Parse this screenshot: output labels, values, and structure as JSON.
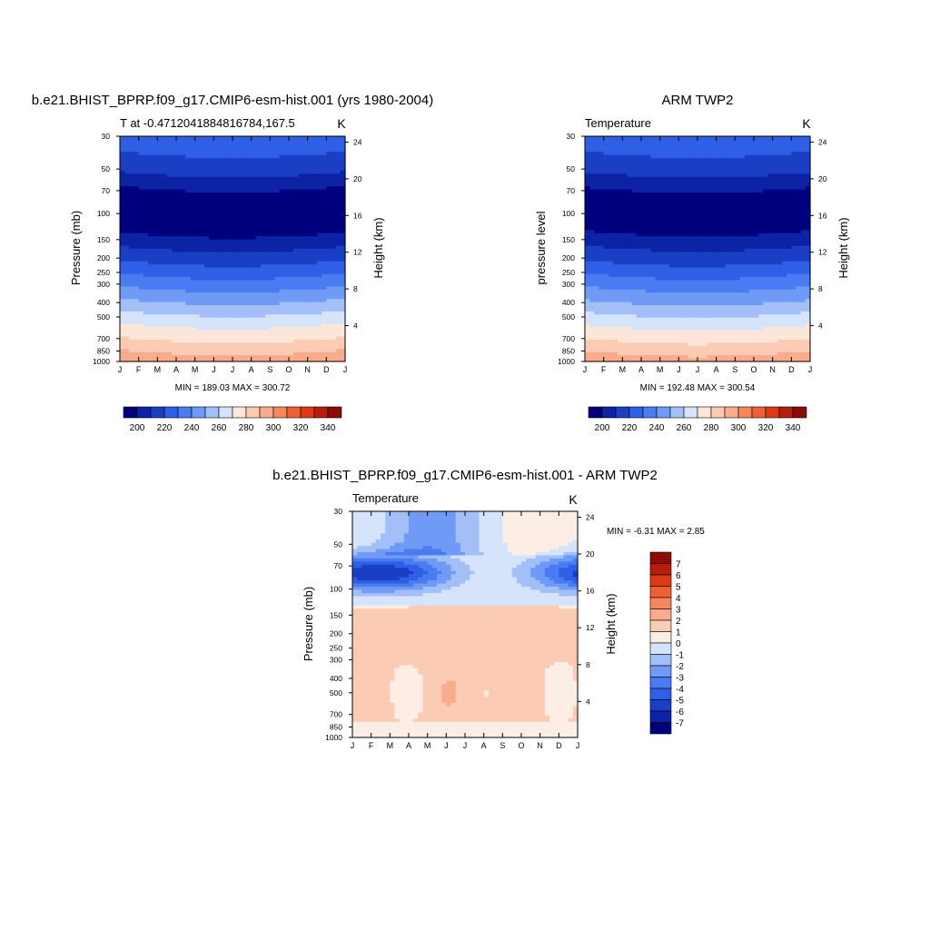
{
  "colors": {
    "temperature": [
      "#00007f",
      "#0d23a6",
      "#1a3fc4",
      "#2e5fe6",
      "#4a7bf2",
      "#6f9af5",
      "#a3bff8",
      "#d5e3fb",
      "#fde6d8",
      "#fccbb4",
      "#f9ac8d",
      "#f5875f",
      "#ef6034",
      "#dc3a14",
      "#b61e0a",
      "#8c0b04"
    ],
    "difference": [
      "#00007f",
      "#0d23a6",
      "#1a3fc4",
      "#2e5fe6",
      "#4a7bf2",
      "#6f9af5",
      "#a3bff8",
      "#d5e3fb",
      "#fdeee5",
      "#fccbb4",
      "#f9ac8d",
      "#f5875f",
      "#ef6034",
      "#dc3a14",
      "#b61e0a",
      "#8c0b04"
    ]
  },
  "panels": {
    "model": {
      "title": "b.e21.BHIST_BPRP.f09_g17.CMIP6-esm-hist.001 (yrs 1980-2004)",
      "subtitle_left": "T at -0.4712041884816784,167.5",
      "subtitle_right": "K",
      "ylabel_left": "Pressure (mb)",
      "ylabel_right": "Height (km)",
      "stats": "MIN = 189.03  MAX = 300.72"
    },
    "obs": {
      "title": "ARM TWP2",
      "subtitle_left": "Temperature",
      "subtitle_right": "K",
      "ylabel_left": "pressure level",
      "ylabel_right": "Height (km)",
      "stats": "MIN = 192.48  MAX = 300.54"
    },
    "diff": {
      "title": "b.e21.BHIST_BPRP.f09_g17.CMIP6-esm-hist.001 - ARM TWP2",
      "subtitle_left": "Temperature",
      "subtitle_right": "K",
      "ylabel_left": "Pressure (mb)",
      "ylabel_right": "Height (km)",
      "stats": "MIN =  -6.31  MAX =   2.85"
    }
  },
  "chart_data": [
    {
      "type": "heatmap",
      "title": "b.e21.BHIST_BPRP.f09_g17.CMIP6-esm-hist.001 (yrs 1980-2004)",
      "subtitle": "T at -0.4712041884816784,167.5",
      "units": "K",
      "x_ticks": [
        "J",
        "F",
        "M",
        "A",
        "M",
        "J",
        "J",
        "A",
        "S",
        "O",
        "N",
        "D",
        "J"
      ],
      "y_ticks": [
        30,
        50,
        70,
        100,
        150,
        200,
        250,
        300,
        400,
        500,
        700,
        850,
        1000
      ],
      "y_right_ticks": [
        4,
        8,
        12,
        16,
        20,
        24
      ],
      "ylabel": "Pressure (mb)",
      "ylabel_right": "Height (km)",
      "ylim": [
        30,
        1000
      ],
      "y_scale": "log",
      "y_inverted": true,
      "min": 189.03,
      "max": 300.72,
      "colorbar_ticks": [
        200,
        220,
        240,
        260,
        280,
        300,
        320,
        340
      ],
      "colorbar_levels": [
        190,
        200,
        210,
        220,
        230,
        240,
        250,
        260,
        270,
        280,
        290,
        300,
        310,
        320,
        330,
        340,
        350
      ],
      "profile": [
        {
          "p": 30,
          "T": 226
        },
        {
          "p": 40,
          "T": 219
        },
        {
          "p": 50,
          "T": 212
        },
        {
          "p": 70,
          "T": 197
        },
        {
          "p": 100,
          "T": 192
        },
        {
          "p": 120,
          "T": 195
        },
        {
          "p": 150,
          "T": 205
        },
        {
          "p": 200,
          "T": 218
        },
        {
          "p": 250,
          "T": 229
        },
        {
          "p": 300,
          "T": 238
        },
        {
          "p": 400,
          "T": 253
        },
        {
          "p": 500,
          "T": 265
        },
        {
          "p": 700,
          "T": 281
        },
        {
          "p": 850,
          "T": 291
        },
        {
          "p": 1000,
          "T": 299
        }
      ]
    },
    {
      "type": "heatmap",
      "title": "ARM TWP2",
      "subtitle": "Temperature",
      "units": "K",
      "x_ticks": [
        "J",
        "F",
        "M",
        "A",
        "M",
        "J",
        "J",
        "A",
        "S",
        "O",
        "N",
        "D",
        "J"
      ],
      "y_ticks": [
        30,
        50,
        70,
        100,
        150,
        200,
        250,
        300,
        400,
        500,
        700,
        850,
        1000
      ],
      "y_right_ticks": [
        4,
        8,
        12,
        16,
        20,
        24
      ],
      "ylabel": "pressure level",
      "ylabel_right": "Height (km)",
      "ylim": [
        30,
        1000
      ],
      "y_scale": "log",
      "y_inverted": true,
      "min": 192.48,
      "max": 300.54,
      "colorbar_ticks": [
        200,
        220,
        240,
        260,
        280,
        300,
        320,
        340
      ],
      "colorbar_levels": [
        190,
        200,
        210,
        220,
        230,
        240,
        250,
        260,
        270,
        280,
        290,
        300,
        310,
        320,
        330,
        340,
        350
      ],
      "profile": [
        {
          "p": 30,
          "T": 226
        },
        {
          "p": 40,
          "T": 219
        },
        {
          "p": 50,
          "T": 212
        },
        {
          "p": 70,
          "T": 198
        },
        {
          "p": 100,
          "T": 194
        },
        {
          "p": 120,
          "T": 196
        },
        {
          "p": 150,
          "T": 206
        },
        {
          "p": 200,
          "T": 218
        },
        {
          "p": 250,
          "T": 229
        },
        {
          "p": 300,
          "T": 238
        },
        {
          "p": 400,
          "T": 252
        },
        {
          "p": 500,
          "T": 264
        },
        {
          "p": 700,
          "T": 280
        },
        {
          "p": 850,
          "T": 290
        },
        {
          "p": 1000,
          "T": 298
        }
      ]
    },
    {
      "type": "heatmap",
      "title": "b.e21.BHIST_BPRP.f09_g17.CMIP6-esm-hist.001 - ARM TWP2",
      "subtitle": "Temperature",
      "units": "K",
      "x_ticks": [
        "J",
        "F",
        "M",
        "A",
        "M",
        "J",
        "J",
        "A",
        "S",
        "O",
        "N",
        "D",
        "J"
      ],
      "y_ticks": [
        30,
        50,
        70,
        100,
        150,
        200,
        250,
        300,
        400,
        500,
        700,
        850,
        1000
      ],
      "y_right_ticks": [
        4,
        8,
        12,
        16,
        20,
        24
      ],
      "ylabel": "Pressure (mb)",
      "ylabel_right": "Height (km)",
      "ylim": [
        30,
        1000
      ],
      "y_scale": "log",
      "y_inverted": true,
      "min": -6.31,
      "max": 2.85,
      "colorbar_ticks": [
        7,
        6,
        5,
        4,
        3,
        2,
        1,
        0,
        -1,
        -2,
        -3,
        -4,
        -5,
        -6,
        -7
      ],
      "colorbar_levels": [
        -8,
        -7,
        -6,
        -5,
        -4,
        -3,
        -2,
        -1,
        0,
        1,
        2,
        3,
        4,
        5,
        6,
        7,
        8
      ]
    }
  ]
}
